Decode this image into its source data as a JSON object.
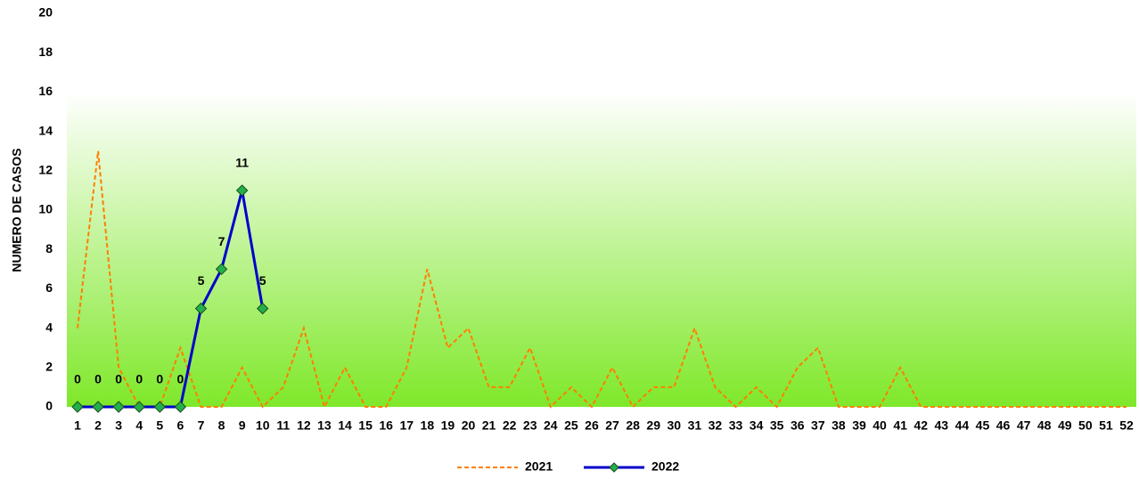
{
  "chart_data": {
    "type": "line",
    "y_label": "NUMERO DE CASOS",
    "categories": [
      "1",
      "2",
      "3",
      "4",
      "5",
      "6",
      "7",
      "8",
      "9",
      "10",
      "11",
      "12",
      "13",
      "14",
      "15",
      "16",
      "17",
      "18",
      "19",
      "20",
      "21",
      "22",
      "23",
      "24",
      "25",
      "26",
      "27",
      "28",
      "29",
      "30",
      "31",
      "32",
      "33",
      "34",
      "35",
      "36",
      "37",
      "38",
      "39",
      "40",
      "41",
      "42",
      "43",
      "44",
      "45",
      "46",
      "47",
      "48",
      "49",
      "50",
      "51",
      "52"
    ],
    "series": [
      {
        "name": "2021",
        "color": "#ff7f00",
        "dashed": true,
        "marker": false,
        "data_labels": false,
        "values": [
          4,
          13,
          2,
          0,
          0,
          3,
          0,
          0,
          2,
          0,
          1,
          4,
          0,
          2,
          0,
          0,
          2,
          7,
          3,
          4,
          1,
          1,
          3,
          0,
          1,
          0,
          2,
          0,
          1,
          1,
          4,
          1,
          0,
          1,
          0,
          2,
          3,
          0,
          0,
          0,
          2,
          0,
          0,
          0,
          0,
          0,
          0,
          0,
          0,
          0,
          0,
          0
        ]
      },
      {
        "name": "2022",
        "color": "#0000cc",
        "dashed": false,
        "marker": true,
        "marker_color": "#22b04a",
        "data_labels": true,
        "values": [
          0,
          0,
          0,
          0,
          0,
          0,
          5,
          7,
          11,
          5,
          null,
          null,
          null,
          null,
          null,
          null,
          null,
          null,
          null,
          null,
          null,
          null,
          null,
          null,
          null,
          null,
          null,
          null,
          null,
          null,
          null,
          null,
          null,
          null,
          null,
          null,
          null,
          null,
          null,
          null,
          null,
          null,
          null,
          null,
          null,
          null,
          null,
          null,
          null,
          null,
          null,
          null
        ]
      }
    ],
    "ylim": [
      0,
      20
    ],
    "yticks": [
      0,
      2,
      4,
      6,
      8,
      10,
      12,
      14,
      16,
      18,
      20
    ]
  }
}
